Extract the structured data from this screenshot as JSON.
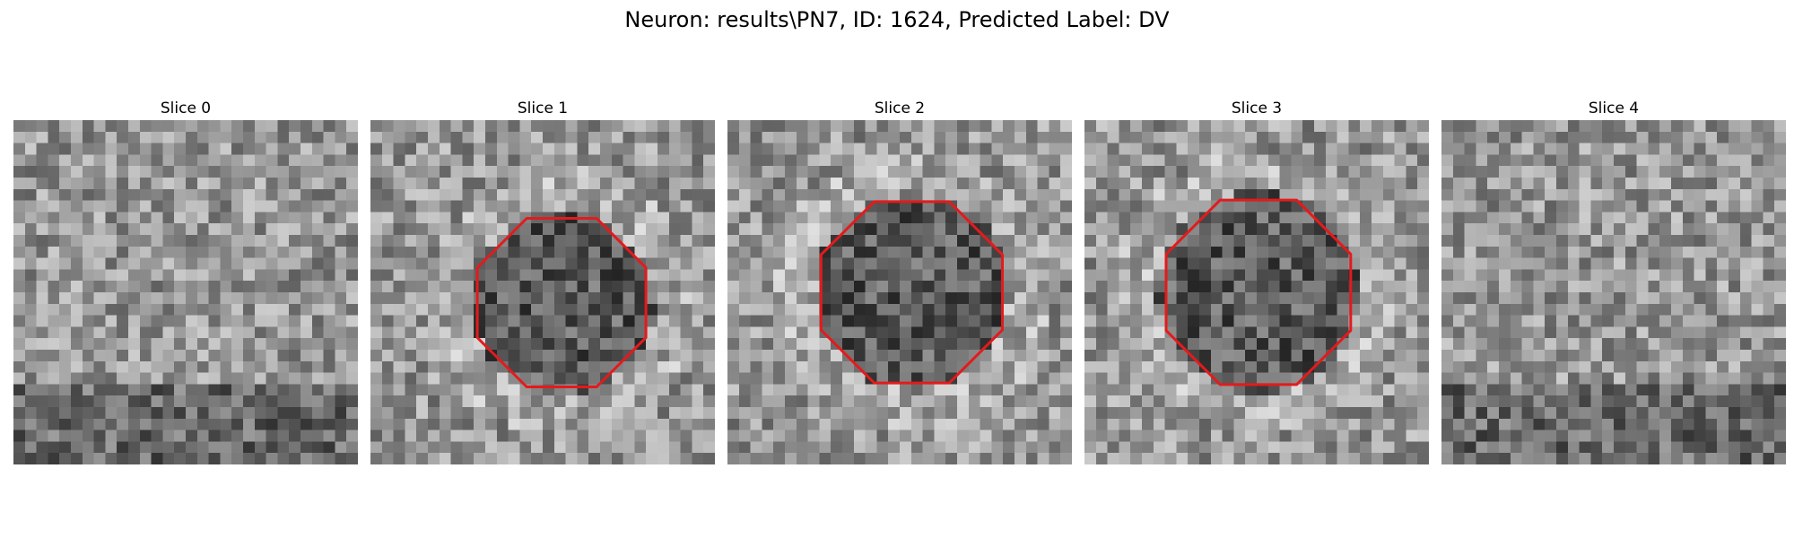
{
  "figure": {
    "title": "Neuron: results\\PN7, ID: 1624, Predicted Label: DV"
  },
  "panels": [
    {
      "title": "Slice 0",
      "seed": 11,
      "has_contour": false
    },
    {
      "title": "Slice 1",
      "seed": 23,
      "has_contour": true,
      "contour_center": [
        0.555,
        0.53
      ],
      "contour_radius": 0.265
    },
    {
      "title": "Slice 2",
      "seed": 37,
      "has_contour": true,
      "contour_center": [
        0.535,
        0.5
      ],
      "contour_radius": 0.285
    },
    {
      "title": "Slice 3",
      "seed": 41,
      "has_contour": true,
      "contour_center": [
        0.505,
        0.5
      ],
      "contour_radius": 0.29
    },
    {
      "title": "Slice 4",
      "seed": 53,
      "has_contour": false
    }
  ],
  "style": {
    "contour_color": "#e41a1c",
    "colormap": "gray"
  }
}
